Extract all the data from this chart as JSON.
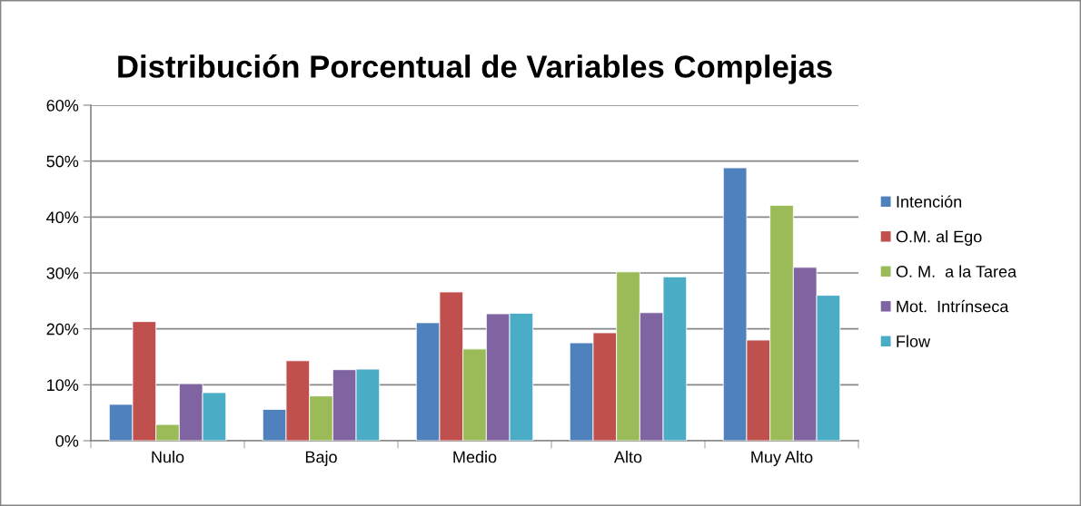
{
  "chart_data": {
    "type": "bar",
    "title": "Distribución Porcentual de Variables Complejas",
    "categories": [
      "Nulo",
      "Bajo",
      "Medio",
      "Alto",
      "Muy Alto"
    ],
    "series": [
      {
        "name": "Intención",
        "color": "#4f81bd",
        "values": [
          6.5,
          5.6,
          21.1,
          17.5,
          48.8
        ]
      },
      {
        "name": "O.M. al Ego",
        "color": "#c0504d",
        "values": [
          21.3,
          14.3,
          26.6,
          19.3,
          18.0
        ]
      },
      {
        "name": "O. M.  a la Tarea",
        "color": "#9bbb59",
        "values": [
          2.9,
          8.0,
          16.4,
          30.2,
          42.1
        ]
      },
      {
        "name": "Mot.  Intrínseca",
        "color": "#8064a2",
        "values": [
          10.2,
          12.7,
          22.7,
          22.9,
          31.0
        ]
      },
      {
        "name": "Flow",
        "color": "#4bacc6",
        "values": [
          8.6,
          12.8,
          22.8,
          29.3,
          26.0
        ]
      }
    ],
    "ylim": [
      0,
      60
    ],
    "yticks": [
      {
        "value": 0,
        "label": "0%"
      },
      {
        "value": 10,
        "label": "10%"
      },
      {
        "value": 20,
        "label": "20%"
      },
      {
        "value": 30,
        "label": "30%"
      },
      {
        "value": 40,
        "label": "40%"
      },
      {
        "value": 50,
        "label": "50%"
      },
      {
        "value": 60,
        "label": "60%"
      }
    ],
    "grid": "y",
    "legend": "right"
  }
}
